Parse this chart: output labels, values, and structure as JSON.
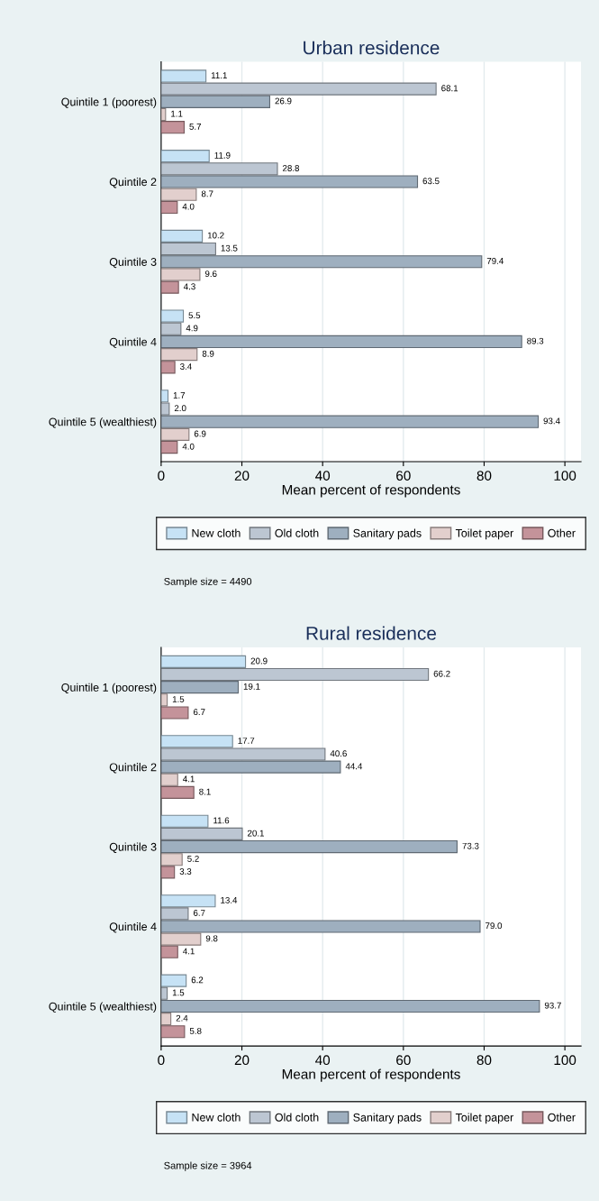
{
  "chart_data": [
    {
      "type": "bar",
      "orientation": "horizontal",
      "title": "Urban residence",
      "xlabel": "Mean percent of respondents",
      "categories": [
        "Quintile 1 (poorest)",
        "Quintile 2",
        "Quintile 3",
        "Quintile 4",
        "Quintile 5 (wealthiest)"
      ],
      "series": [
        {
          "name": "New cloth",
          "color": "#c6e2f5",
          "values": [
            11.1,
            11.9,
            10.2,
            5.5,
            1.7
          ],
          "value_labels": [
            "11.1",
            "11.9",
            "10.2",
            "5.5",
            "1.7"
          ]
        },
        {
          "name": "Old cloth",
          "color": "#bcc6d2",
          "values": [
            68.1,
            28.8,
            13.5,
            4.9,
            2
          ],
          "value_labels": [
            "68.1",
            "28.8",
            "13.5",
            "4.9",
            "2.0"
          ]
        },
        {
          "name": "Sanitary pads",
          "color": "#9eafbf",
          "values": [
            26.9,
            63.5,
            79.4,
            89.3,
            93.4
          ],
          "value_labels": [
            "26.9",
            "63.5",
            "79.4",
            "89.3",
            "93.4"
          ]
        },
        {
          "name": "Toilet paper",
          "color": "#e2cfcd",
          "values": [
            1.1,
            8.7,
            9.6,
            8.9,
            6.9
          ],
          "value_labels": [
            "1.1",
            "8.7",
            "9.6",
            "8.9",
            "6.9"
          ]
        },
        {
          "name": "Other",
          "color": "#c4939a",
          "values": [
            5.7,
            4,
            4.3,
            3.4,
            4
          ],
          "value_labels": [
            "5.7",
            "4.0",
            "4.3",
            "3.4",
            "4.0"
          ]
        }
      ],
      "xlim": [
        0,
        104
      ],
      "xticks": [
        0,
        20,
        40,
        60,
        80,
        100
      ],
      "grid": "x",
      "legend": "bottom",
      "annotations": [
        "Sample size = 4490"
      ]
    },
    {
      "type": "bar",
      "orientation": "horizontal",
      "title": "Rural residence",
      "xlabel": "Mean percent of respondents",
      "categories": [
        "Quintile 1 (poorest)",
        "Quintile 2",
        "Quintile 3",
        "Quintile 4",
        "Quintile 5 (wealthiest)"
      ],
      "series": [
        {
          "name": "New cloth",
          "color": "#c6e2f5",
          "values": [
            20.9,
            17.7,
            11.6,
            13.4,
            6.2
          ],
          "value_labels": [
            "20.9",
            "17.7",
            "11.6",
            "13.4",
            "6.2"
          ]
        },
        {
          "name": "Old cloth",
          "color": "#bcc6d2",
          "values": [
            66.2,
            40.6,
            20.1,
            6.7,
            1.5
          ],
          "value_labels": [
            "66.2",
            "40.6",
            "20.1",
            "6.7",
            "1.5"
          ]
        },
        {
          "name": "Sanitary pads",
          "color": "#9eafbf",
          "values": [
            19.1,
            44.4,
            73.3,
            79,
            93.7
          ],
          "value_labels": [
            "19.1",
            "44.4",
            "73.3",
            "79.0",
            "93.7"
          ]
        },
        {
          "name": "Toilet paper",
          "color": "#e2cfcd",
          "values": [
            1.5,
            4.1,
            5.2,
            9.8,
            2.4
          ],
          "value_labels": [
            "1.5",
            "4.1",
            "5.2",
            "9.8",
            "2.4"
          ]
        },
        {
          "name": "Other",
          "color": "#c4939a",
          "values": [
            6.7,
            8.1,
            3.3,
            4.1,
            5.8
          ],
          "value_labels": [
            "6.7",
            "8.1",
            "3.3",
            "4.1",
            "5.8"
          ]
        }
      ],
      "xlim": [
        0,
        104
      ],
      "xticks": [
        0,
        20,
        40,
        60,
        80,
        100
      ],
      "grid": "x",
      "legend": "bottom",
      "annotations": [
        "Sample size = 3964"
      ]
    }
  ]
}
